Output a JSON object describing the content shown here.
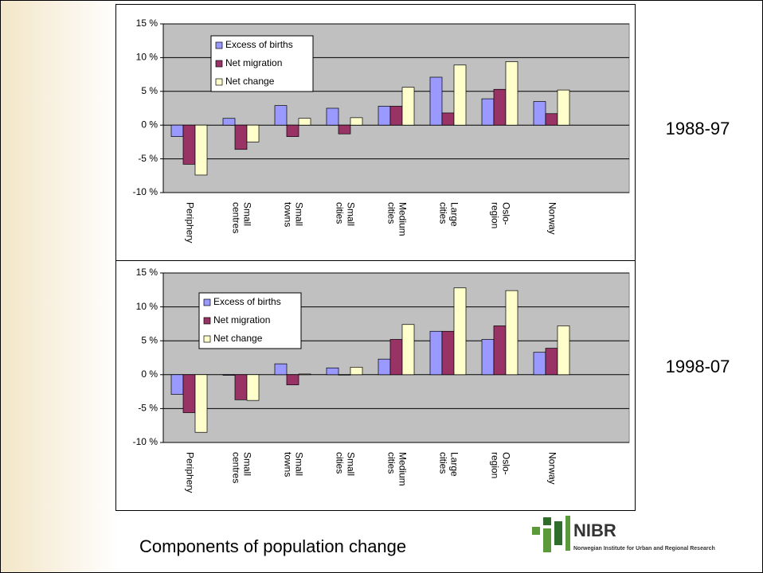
{
  "chart_data": [
    {
      "type": "bar",
      "title": "1988-97",
      "categories": [
        "Periphery",
        "Small centres",
        "Small towns",
        "Small cities",
        "Medium cities",
        "Large cities",
        "Oslo-region",
        "Norway",
        null
      ],
      "series": [
        {
          "name": "Excess of births",
          "color": "#9999ff",
          "values": [
            -1.7,
            1.0,
            2.9,
            2.5,
            2.8,
            7.1,
            3.9,
            3.5,
            null
          ]
        },
        {
          "name": "Net migration",
          "color": "#993366",
          "values": [
            -5.8,
            -3.6,
            -1.7,
            -1.3,
            2.8,
            1.8,
            5.3,
            1.7,
            null
          ]
        },
        {
          "name": "Net change",
          "color": "#ffffcc",
          "values": [
            -7.4,
            -2.5,
            1.0,
            1.1,
            5.6,
            8.9,
            9.4,
            5.2,
            null
          ]
        }
      ],
      "ylim": [
        -10,
        15
      ],
      "yticks": [
        {
          "value": -10,
          "label": "-10 %"
        },
        {
          "value": -5,
          "label": "-5 %"
        },
        {
          "value": 0,
          "label": "0 %"
        },
        {
          "value": 5,
          "label": "5 %"
        },
        {
          "value": 10,
          "label": "10 %"
        },
        {
          "value": 15,
          "label": "15 %"
        }
      ],
      "grid": true,
      "legend": "top-left"
    },
    {
      "type": "bar",
      "title": "1998-07",
      "categories": [
        "Periphery",
        "Small centres",
        "Small towns",
        "Small cities",
        "Medium cities",
        "Large cities",
        "Oslo-region",
        "Norway",
        null
      ],
      "series": [
        {
          "name": "Excess of births",
          "color": "#9999ff",
          "values": [
            -2.9,
            -0.1,
            1.6,
            1.0,
            2.3,
            6.4,
            5.2,
            3.3,
            null
          ]
        },
        {
          "name": "Net migration",
          "color": "#993366",
          "values": [
            -5.6,
            -3.7,
            -1.5,
            0.0,
            5.2,
            6.4,
            7.2,
            3.9,
            null
          ]
        },
        {
          "name": "Net change",
          "color": "#ffffcc",
          "values": [
            -8.5,
            -3.8,
            0.1,
            1.1,
            7.4,
            12.8,
            12.4,
            7.2,
            null
          ]
        }
      ],
      "ylim": [
        -10,
        15
      ],
      "yticks": [
        {
          "value": -10,
          "label": "-10 %"
        },
        {
          "value": -5,
          "label": "-5 %"
        },
        {
          "value": 0,
          "label": "0 %"
        },
        {
          "value": 5,
          "label": "5 %"
        },
        {
          "value": 10,
          "label": "10 %"
        },
        {
          "value": 15,
          "label": "15 %"
        }
      ],
      "grid": true,
      "legend": "top-left"
    }
  ],
  "slide": {
    "caption": "Components of population change",
    "logo_name": "NIBR",
    "logo_subtitle": "Norwegian Institute for Urban and Regional Research"
  }
}
